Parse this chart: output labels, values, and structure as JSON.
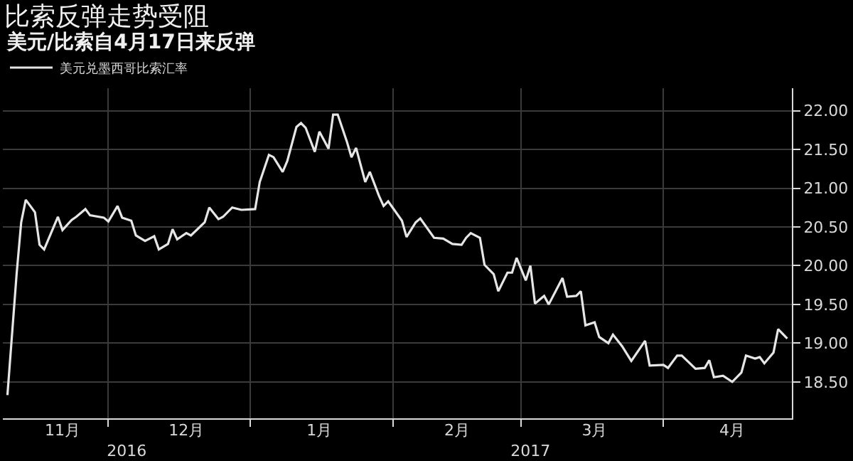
{
  "chart_data": {
    "type": "line",
    "title": "比索反弹走势受阻",
    "subtitle": "美元/比索自4月17日来反弹",
    "x": [
      "2016-11-09",
      "2016-11-11",
      "2016-11-12",
      "2016-11-13",
      "2016-11-15",
      "2016-11-16",
      "2016-11-17",
      "2016-11-20",
      "2016-11-21",
      "2016-11-23",
      "2016-11-24",
      "2016-11-26",
      "2016-11-27",
      "2016-11-30",
      "2016-12-01",
      "2016-12-03",
      "2016-12-04",
      "2016-12-06",
      "2016-12-07",
      "2016-12-09",
      "2016-12-11",
      "2016-12-12",
      "2016-12-14",
      "2016-12-15",
      "2016-12-16",
      "2016-12-18",
      "2016-12-19",
      "2016-12-22",
      "2016-12-23",
      "2016-12-25",
      "2016-12-26",
      "2016-12-28",
      "2016-12-30",
      "2017-01-02",
      "2017-01-03",
      "2017-01-05",
      "2017-01-06",
      "2017-01-08",
      "2017-01-09",
      "2017-01-11",
      "2017-01-12",
      "2017-01-13",
      "2017-01-15",
      "2017-01-16",
      "2017-01-18",
      "2017-01-19",
      "2017-01-20",
      "2017-01-22",
      "2017-01-23",
      "2017-01-24",
      "2017-01-26",
      "2017-01-27",
      "2017-01-29",
      "2017-01-30",
      "2017-01-31",
      "2017-02-03",
      "2017-02-04",
      "2017-02-06",
      "2017-02-07",
      "2017-02-10",
      "2017-02-12",
      "2017-02-14",
      "2017-02-16",
      "2017-02-17",
      "2017-02-18",
      "2017-02-20",
      "2017-02-21",
      "2017-02-23",
      "2017-02-24",
      "2017-02-26",
      "2017-02-27",
      "2017-02-28",
      "2017-03-02",
      "2017-03-03",
      "2017-03-04",
      "2017-03-06",
      "2017-03-07",
      "2017-03-10",
      "2017-03-11",
      "2017-03-13",
      "2017-03-14",
      "2017-03-15",
      "2017-03-17",
      "2017-03-18",
      "2017-03-20",
      "2017-03-21",
      "2017-03-23",
      "2017-03-25",
      "2017-03-28",
      "2017-03-29",
      "2017-04-01",
      "2017-04-02",
      "2017-04-04",
      "2017-04-05",
      "2017-04-08",
      "2017-04-10",
      "2017-04-11",
      "2017-04-12",
      "2017-04-14",
      "2017-04-16",
      "2017-04-18",
      "2017-04-19",
      "2017-04-21",
      "2017-04-22",
      "2017-04-23",
      "2017-04-25",
      "2017-04-26",
      "2017-04-28"
    ],
    "series": [
      {
        "name": "美元兑墨西哥比索汇率",
        "color": "#e6e6e6",
        "values": [
          18.33,
          19.89,
          20.56,
          20.85,
          20.69,
          20.27,
          20.21,
          20.63,
          20.46,
          20.59,
          20.63,
          20.73,
          20.65,
          20.62,
          20.57,
          20.77,
          20.62,
          20.58,
          20.39,
          20.32,
          20.38,
          20.21,
          20.28,
          20.47,
          20.34,
          20.42,
          20.39,
          20.56,
          20.75,
          20.6,
          20.63,
          20.75,
          20.72,
          20.73,
          21.08,
          21.43,
          21.4,
          21.21,
          21.35,
          21.79,
          21.84,
          21.78,
          21.47,
          21.73,
          21.51,
          21.95,
          21.95,
          21.6,
          21.4,
          21.52,
          21.08,
          21.21,
          20.9,
          20.77,
          20.83,
          20.58,
          20.37,
          20.56,
          20.61,
          20.36,
          20.35,
          20.28,
          20.27,
          20.36,
          20.42,
          20.36,
          20.01,
          19.89,
          19.67,
          19.91,
          19.91,
          20.1,
          19.81,
          20.0,
          19.51,
          19.61,
          19.5,
          19.84,
          19.6,
          19.61,
          19.67,
          19.23,
          19.27,
          19.08,
          19.0,
          19.11,
          18.96,
          18.77,
          19.03,
          18.71,
          18.72,
          18.68,
          18.84,
          18.84,
          18.67,
          18.68,
          18.78,
          18.56,
          18.58,
          18.5,
          18.62,
          18.84,
          18.8,
          18.82,
          18.74,
          18.88,
          19.18,
          19.06
        ]
      }
    ],
    "xlim": [
      "2016-11-08",
      "2017-04-29"
    ],
    "xticks": [
      {
        "value": "2016-12-01",
        "label": null
      },
      {
        "value": "2017-01-01",
        "label": null
      },
      {
        "value": "2017-02-01",
        "label": null
      },
      {
        "value": "2017-03-01",
        "label": null
      },
      {
        "value": "2017-04-01",
        "label": null
      },
      {
        "value": "2016-11-21",
        "label": "11月"
      },
      {
        "value": "2016-12-18",
        "label": "12月"
      },
      {
        "value": "2017-01-16",
        "label": "1月"
      },
      {
        "value": "2017-02-15",
        "label": "2月"
      },
      {
        "value": "2017-03-17",
        "label": "3月"
      },
      {
        "value": "2017-04-16",
        "label": "4月"
      }
    ],
    "x2lim": [
      "2016-11-08",
      "2017-04-29"
    ],
    "x2ticks": [
      {
        "value": "2016-12-05",
        "label": "2016"
      },
      {
        "value": "2017-03-03",
        "label": "2017"
      }
    ],
    "ylim": [
      18.03,
      22.29
    ],
    "yticks": [
      {
        "value": 18.5,
        "label": "18.50"
      },
      {
        "value": 19,
        "label": "19.00"
      },
      {
        "value": 19.5,
        "label": "19.50"
      },
      {
        "value": 20,
        "label": "20.00"
      },
      {
        "value": 20.5,
        "label": "20.50"
      },
      {
        "value": 21,
        "label": "21.00"
      },
      {
        "value": 21.5,
        "label": "21.50"
      },
      {
        "value": 22,
        "label": "22.00"
      }
    ],
    "grid": true,
    "legend": "top left",
    "marker": "none",
    "line_style": "solid"
  }
}
